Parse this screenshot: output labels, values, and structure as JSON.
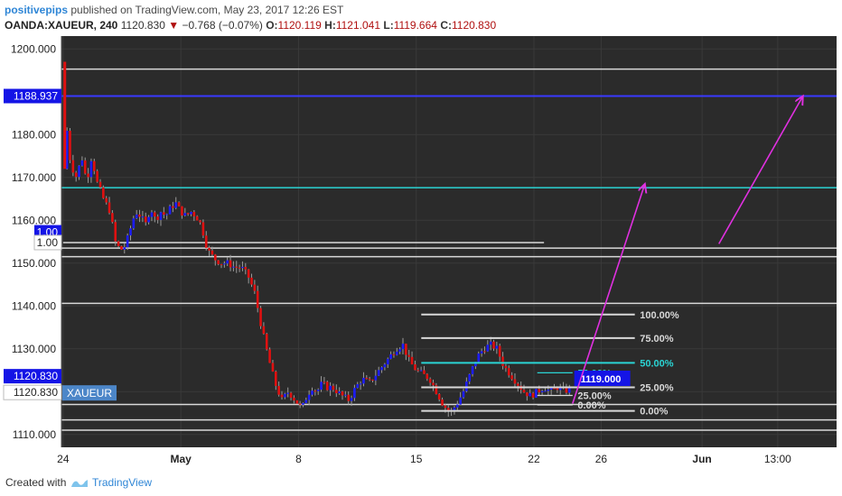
{
  "header": {
    "author": "positivepips",
    "published": "published on TradingView.com, May 23, 2017 12:26 EST",
    "symbol": "OANDA:XAUEUR, 240",
    "price": "1120.830",
    "change_arrow": "▼",
    "change": "−0.768 (−0.07%)",
    "o_label": "O:",
    "o_value": "1120.119",
    "h_label": "H:",
    "h_value": "1121.041",
    "l_label": "L:",
    "l_value": "1119.664",
    "c_label": "C:",
    "c_value": "1120.830"
  },
  "footer": {
    "created": "Created with",
    "brand": "TradingView"
  },
  "colors": {
    "background": "#2b2b2b",
    "grid": "#3a3a3a",
    "up": "#1c1cff",
    "down": "#e01010",
    "fib_line": "#d9d9d9",
    "cyan": "#2ad4d4",
    "blue_level": "#3a3aff",
    "magenta": "#e030e0",
    "label_blue": "#1414e6"
  },
  "chart_data": {
    "type": "candlestick",
    "title": "",
    "xlabel": "",
    "ylabel": "",
    "ylim": [
      1107,
      1203
    ],
    "grid": true,
    "y_ticks": [
      "1110.000",
      "1120.000",
      "1130.000",
      "1140.000",
      "1150.000",
      "1160.000",
      "1170.000",
      "1180.000",
      "1200.000"
    ],
    "x_ticks": [
      {
        "label": "24",
        "day": 0
      },
      {
        "label": "May",
        "day": 7
      },
      {
        "label": "8",
        "day": 14
      },
      {
        "label": "15",
        "day": 21
      },
      {
        "label": "22",
        "day": 28
      },
      {
        "label": "26",
        "day": 32
      },
      {
        "label": "Jun",
        "day": 38
      },
      {
        "label": "13:00",
        "day": 42.5
      }
    ],
    "x_day_range": [
      -0.1,
      46.0
    ],
    "close_path": [
      [
        0.05,
        1172
      ],
      [
        0.1,
        1197
      ],
      [
        0.2,
        1182
      ],
      [
        0.45,
        1173
      ],
      [
        0.8,
        1170
      ],
      [
        1.1,
        1175
      ],
      [
        1.4,
        1169
      ],
      [
        1.7,
        1175
      ],
      [
        2.0,
        1169
      ],
      [
        2.4,
        1165
      ],
      [
        2.8,
        1162
      ],
      [
        3.1,
        1155
      ],
      [
        3.4,
        1153
      ],
      [
        3.7,
        1154
      ],
      [
        4.0,
        1158
      ],
      [
        4.3,
        1162
      ],
      [
        4.6,
        1161
      ],
      [
        4.9,
        1159
      ],
      [
        5.2,
        1163
      ],
      [
        5.5,
        1160
      ],
      [
        5.8,
        1162
      ],
      [
        6.1,
        1161
      ],
      [
        6.4,
        1163
      ],
      [
        6.7,
        1164
      ],
      [
        7.0,
        1162
      ],
      [
        7.3,
        1161
      ],
      [
        7.6,
        1162
      ],
      [
        7.9,
        1161
      ],
      [
        8.2,
        1159
      ],
      [
        8.6,
        1153
      ],
      [
        9.0,
        1151
      ],
      [
        9.4,
        1150
      ],
      [
        9.8,
        1150
      ],
      [
        10.2,
        1149
      ],
      [
        10.6,
        1149
      ],
      [
        11.0,
        1147
      ],
      [
        11.4,
        1143
      ],
      [
        11.8,
        1135
      ],
      [
        12.2,
        1128
      ],
      [
        12.6,
        1122
      ],
      [
        13.0,
        1118
      ],
      [
        13.4,
        1120
      ],
      [
        13.8,
        1118
      ],
      [
        14.2,
        1116
      ],
      [
        14.5,
        1119
      ],
      [
        14.8,
        1121
      ],
      [
        15.1,
        1120
      ],
      [
        15.4,
        1122
      ],
      [
        15.7,
        1121
      ],
      [
        16.0,
        1121
      ],
      [
        16.3,
        1120
      ],
      [
        16.6,
        1119
      ],
      [
        17.0,
        1118
      ],
      [
        17.4,
        1121
      ],
      [
        17.8,
        1123
      ],
      [
        18.2,
        1122
      ],
      [
        18.6,
        1124
      ],
      [
        19.0,
        1126
      ],
      [
        19.4,
        1128
      ],
      [
        19.8,
        1130
      ],
      [
        20.2,
        1131
      ],
      [
        20.6,
        1127
      ],
      [
        21.0,
        1125
      ],
      [
        21.4,
        1124
      ],
      [
        21.8,
        1123
      ],
      [
        22.2,
        1120
      ],
      [
        22.6,
        1117
      ],
      [
        23.0,
        1115
      ],
      [
        23.4,
        1117
      ],
      [
        23.8,
        1120
      ],
      [
        24.2,
        1124
      ],
      [
        24.6,
        1128
      ],
      [
        25.0,
        1130
      ],
      [
        25.4,
        1131
      ],
      [
        25.8,
        1130
      ],
      [
        26.2,
        1126
      ],
      [
        26.6,
        1124
      ],
      [
        27.0,
        1122
      ],
      [
        27.4,
        1120
      ],
      [
        27.8,
        1119
      ],
      [
        28.2,
        1120
      ],
      [
        28.6,
        1121
      ],
      [
        29.0,
        1120
      ],
      [
        29.4,
        1121
      ],
      [
        29.8,
        1120
      ],
      [
        30.2,
        1120.8
      ]
    ],
    "horizontal_levels": [
      {
        "price": 1195.3,
        "color": "#d9d9d9"
      },
      {
        "price": 1189.0,
        "color": "#3a3aff"
      },
      {
        "price": 1167.6,
        "color": "#2ad4d4"
      },
      {
        "price": 1153.5,
        "color": "#d9d9d9"
      },
      {
        "price": 1151.5,
        "color": "#d9d9d9"
      },
      {
        "price": 1140.6,
        "color": "#d9d9d9"
      },
      {
        "price": 1117.0,
        "color": "#d9d9d9"
      },
      {
        "price": 1113.4,
        "color": "#d9d9d9"
      },
      {
        "price": 1111.0,
        "color": "#d9d9d9"
      }
    ],
    "short_levels": [
      {
        "price": 1154.8,
        "day_from": 0.0,
        "day_to": 28.6,
        "color": "#d9d9d9"
      }
    ],
    "fib_main": {
      "day_from": 21.3,
      "day_to": 34.0,
      "label_day": 34.3,
      "levels": [
        {
          "price": 1138.0,
          "label": "100.00%",
          "color": "#d9d9d9"
        },
        {
          "price": 1132.5,
          "label": "75.00%",
          "color": "#d9d9d9"
        },
        {
          "price": 1126.7,
          "label": "50.00%",
          "color": "#2ad4d4"
        },
        {
          "price": 1121.0,
          "label": "25.00%",
          "color": "#d9d9d9"
        },
        {
          "price": 1115.5,
          "label": "0.00%",
          "color": "#d9d9d9"
        }
      ]
    },
    "fib_small": {
      "day_from": 28.2,
      "day_to": 30.3,
      "label_day": 30.6,
      "levels": [
        {
          "price": 1124.4,
          "label": "50.00%",
          "color": "#2ad4d4"
        },
        {
          "price": 1119.1,
          "label": "25.00%",
          "color": "#d9d9d9"
        },
        {
          "price": 1116.9,
          "label": "0.00%",
          "color": "#d9d9d9"
        }
      ]
    },
    "price_box": {
      "label": "1119.000",
      "day": 30.4,
      "price": 1123.0
    },
    "arrows": [
      {
        "from": [
          30.3,
          1117.2
        ],
        "to": [
          34.6,
          1168.5
        ],
        "color": "#e030e0"
      },
      {
        "from": [
          39.0,
          1154.5
        ],
        "to": [
          44.0,
          1189.0
        ],
        "color": "#e030e0"
      }
    ],
    "axis_labels": [
      {
        "text": "1188.937",
        "price": 1189.0,
        "style": "blue"
      },
      {
        "text": "1.00",
        "price": 1157.2,
        "style": "blue"
      },
      {
        "text": "1.00",
        "price": 1154.8,
        "style": "white"
      },
      {
        "text": "1120.830",
        "price": 1123.6,
        "style": "blue"
      },
      {
        "text": "1120.830",
        "price": 1119.8,
        "style": "white"
      }
    ],
    "symbol_label": "XAUEUR"
  }
}
